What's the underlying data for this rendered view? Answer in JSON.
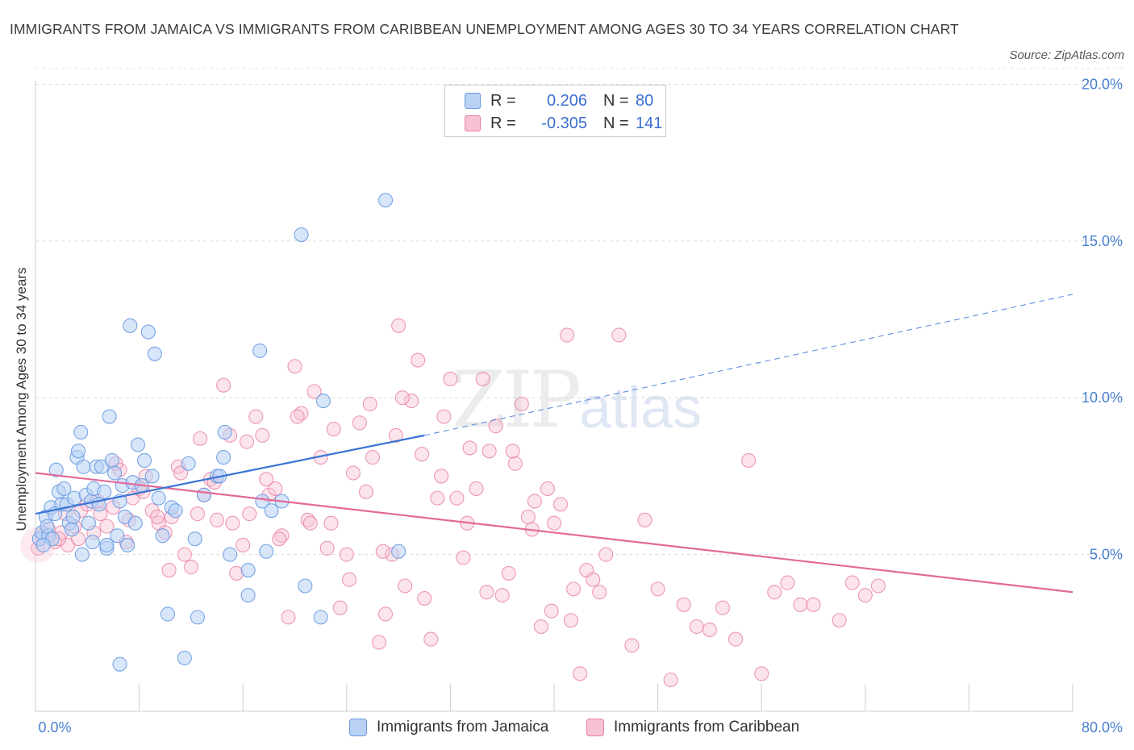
{
  "title": "IMMIGRANTS FROM JAMAICA VS IMMIGRANTS FROM CARIBBEAN UNEMPLOYMENT AMONG AGES 30 TO 34 YEARS CORRELATION CHART",
  "source": "Source: ZipAtlas.com",
  "watermark": {
    "zip": "ZIP",
    "atlas": "atlas"
  },
  "legend": {
    "rows": [
      {
        "r_label": "R =",
        "r_value": "0.206",
        "n_label": "N =",
        "n_value": "80",
        "color": "#6a9be0",
        "fill": "#b8d1f5"
      },
      {
        "r_label": "R =",
        "r_value": "-0.305",
        "n_label": "N =",
        "n_value": "141",
        "color": "#e87fa3",
        "fill": "#f7c3d4"
      }
    ]
  },
  "bottom_legend": [
    "Immigrants from Jamaica",
    "Immigrants from Caribbean"
  ],
  "chart_data": {
    "type": "scatter",
    "title": "IMMIGRANTS FROM JAMAICA VS IMMIGRANTS FROM CARIBBEAN UNEMPLOYMENT AMONG AGES 30 TO 34 YEARS CORRELATION CHART",
    "xlabel": "",
    "ylabel": "Unemployment Among Ages 30 to 34 years",
    "xlim": [
      0,
      80
    ],
    "ylim": [
      0,
      20.5
    ],
    "x_tick_labels": [
      "0.0%",
      "80.0%"
    ],
    "y_ticks": [
      5,
      10,
      15,
      20
    ],
    "y_tick_labels": [
      "5.0%",
      "10.0%",
      "15.0%",
      "20.0%"
    ],
    "grid": "horizontal dashed",
    "legend_position": "top-center",
    "series": [
      {
        "name": "Immigrants from Jamaica",
        "color": "#6a9be0",
        "fill": "#b8d1f5",
        "trend": {
          "x": [
            0,
            30
          ],
          "y": [
            6.3,
            8.8
          ],
          "extended_to": [
            80,
            13.3
          ]
        },
        "points": [
          [
            0.3,
            5.5
          ],
          [
            0.5,
            5.7
          ],
          [
            0.8,
            6.2
          ],
          [
            1.0,
            5.6
          ],
          [
            1.2,
            6.5
          ],
          [
            1.5,
            6.3
          ],
          [
            1.6,
            7.7
          ],
          [
            1.8,
            7.0
          ],
          [
            2.0,
            6.6
          ],
          [
            2.2,
            7.1
          ],
          [
            2.4,
            6.6
          ],
          [
            2.6,
            6.0
          ],
          [
            2.8,
            5.8
          ],
          [
            3.0,
            6.8
          ],
          [
            3.2,
            8.1
          ],
          [
            3.3,
            8.3
          ],
          [
            3.5,
            8.9
          ],
          [
            3.7,
            7.8
          ],
          [
            3.9,
            6.9
          ],
          [
            4.1,
            6.0
          ],
          [
            4.3,
            6.7
          ],
          [
            4.5,
            7.1
          ],
          [
            4.7,
            7.8
          ],
          [
            4.9,
            6.6
          ],
          [
            5.1,
            7.8
          ],
          [
            5.3,
            7.0
          ],
          [
            5.5,
            5.2
          ],
          [
            5.7,
            9.4
          ],
          [
            5.9,
            8.0
          ],
          [
            6.1,
            7.6
          ],
          [
            6.3,
            5.6
          ],
          [
            6.5,
            6.7
          ],
          [
            6.7,
            7.2
          ],
          [
            6.9,
            6.2
          ],
          [
            7.1,
            5.3
          ],
          [
            7.3,
            12.3
          ],
          [
            7.5,
            7.3
          ],
          [
            7.7,
            6.0
          ],
          [
            7.9,
            8.5
          ],
          [
            8.2,
            7.2
          ],
          [
            8.4,
            8.0
          ],
          [
            8.7,
            12.1
          ],
          [
            9.0,
            7.5
          ],
          [
            9.2,
            11.4
          ],
          [
            9.5,
            6.8
          ],
          [
            9.8,
            5.6
          ],
          [
            10.2,
            3.1
          ],
          [
            10.5,
            6.5
          ],
          [
            10.8,
            6.4
          ],
          [
            11.5,
            1.7
          ],
          [
            11.8,
            7.9
          ],
          [
            12.3,
            5.5
          ],
          [
            12.5,
            3.0
          ],
          [
            13.0,
            6.9
          ],
          [
            14.0,
            7.5
          ],
          [
            14.2,
            7.5
          ],
          [
            14.5,
            8.1
          ],
          [
            14.6,
            8.9
          ],
          [
            15.0,
            5.0
          ],
          [
            16.4,
            3.7
          ],
          [
            16.4,
            4.5
          ],
          [
            17.3,
            11.5
          ],
          [
            17.5,
            6.7
          ],
          [
            17.8,
            5.1
          ],
          [
            18.2,
            6.4
          ],
          [
            19.0,
            6.7
          ],
          [
            20.5,
            15.2
          ],
          [
            20.8,
            4.0
          ],
          [
            22.0,
            3.0
          ],
          [
            22.2,
            9.9
          ],
          [
            5.5,
            5.3
          ],
          [
            6.5,
            1.5
          ],
          [
            1.3,
            5.5
          ],
          [
            0.9,
            5.9
          ],
          [
            2.9,
            6.2
          ],
          [
            3.6,
            5.0
          ],
          [
            4.4,
            5.4
          ],
          [
            0.6,
            5.3
          ],
          [
            27.0,
            16.3
          ],
          [
            28.0,
            5.1
          ]
        ]
      },
      {
        "name": "Immigrants from Caribbean",
        "color": "#e87fa3",
        "fill": "#f7c3d4",
        "trend": {
          "x": [
            0,
            80
          ],
          "y": [
            7.6,
            3.8
          ]
        },
        "points": [
          [
            0.2,
            5.2
          ],
          [
            0.5,
            5.6
          ],
          [
            1.0,
            5.8
          ],
          [
            1.5,
            5.4
          ],
          [
            2.0,
            5.7
          ],
          [
            2.5,
            5.3
          ],
          [
            3.0,
            5.9
          ],
          [
            3.5,
            6.4
          ],
          [
            4.0,
            6.6
          ],
          [
            4.5,
            5.7
          ],
          [
            5.0,
            6.3
          ],
          [
            5.5,
            5.9
          ],
          [
            6.0,
            6.5
          ],
          [
            6.5,
            7.7
          ],
          [
            7.0,
            5.4
          ],
          [
            7.5,
            6.8
          ],
          [
            8.0,
            7.1
          ],
          [
            8.5,
            7.5
          ],
          [
            9.0,
            6.4
          ],
          [
            9.5,
            6.0
          ],
          [
            10.0,
            5.7
          ],
          [
            10.5,
            6.2
          ],
          [
            11.0,
            7.8
          ],
          [
            11.5,
            5.0
          ],
          [
            12.0,
            4.6
          ],
          [
            12.5,
            6.3
          ],
          [
            13.0,
            6.9
          ],
          [
            13.5,
            7.4
          ],
          [
            14.0,
            6.1
          ],
          [
            14.5,
            10.4
          ],
          [
            15.0,
            8.8
          ],
          [
            15.5,
            4.4
          ],
          [
            16.0,
            5.3
          ],
          [
            16.5,
            6.3
          ],
          [
            17.0,
            9.4
          ],
          [
            17.5,
            8.8
          ],
          [
            18.0,
            6.9
          ],
          [
            18.5,
            7.1
          ],
          [
            19.0,
            5.6
          ],
          [
            19.5,
            3.0
          ],
          [
            20.0,
            11.0
          ],
          [
            20.5,
            9.5
          ],
          [
            21.0,
            6.1
          ],
          [
            21.5,
            10.2
          ],
          [
            22.0,
            8.1
          ],
          [
            22.5,
            5.2
          ],
          [
            23.0,
            9.0
          ],
          [
            23.5,
            3.3
          ],
          [
            24.0,
            5.0
          ],
          [
            24.5,
            7.6
          ],
          [
            25.0,
            9.2
          ],
          [
            25.5,
            7.0
          ],
          [
            26.0,
            8.1
          ],
          [
            26.5,
            2.2
          ],
          [
            27.0,
            3.1
          ],
          [
            27.5,
            5.0
          ],
          [
            28.0,
            12.3
          ],
          [
            28.5,
            4.0
          ],
          [
            29.0,
            9.9
          ],
          [
            29.5,
            11.2
          ],
          [
            30.0,
            3.6
          ],
          [
            30.5,
            2.3
          ],
          [
            31.0,
            6.8
          ],
          [
            31.5,
            9.4
          ],
          [
            32.0,
            10.6
          ],
          [
            32.5,
            6.8
          ],
          [
            33.0,
            4.9
          ],
          [
            33.5,
            8.4
          ],
          [
            34.0,
            7.1
          ],
          [
            34.5,
            10.6
          ],
          [
            35.0,
            8.3
          ],
          [
            35.5,
            9.1
          ],
          [
            36.0,
            3.7
          ],
          [
            36.5,
            4.4
          ],
          [
            37.0,
            7.9
          ],
          [
            37.5,
            9.8
          ],
          [
            38.0,
            6.2
          ],
          [
            38.5,
            6.7
          ],
          [
            39.0,
            2.7
          ],
          [
            39.5,
            7.1
          ],
          [
            40.0,
            6.0
          ],
          [
            40.5,
            6.6
          ],
          [
            41.0,
            12.0
          ],
          [
            41.5,
            3.9
          ],
          [
            42.0,
            1.2
          ],
          [
            42.5,
            4.5
          ],
          [
            43.0,
            4.2
          ],
          [
            43.5,
            3.8
          ],
          [
            44.0,
            5.0
          ],
          [
            45.0,
            12.0
          ],
          [
            46.0,
            2.1
          ],
          [
            47.0,
            6.1
          ],
          [
            48.0,
            3.9
          ],
          [
            49.0,
            1.0
          ],
          [
            50.0,
            3.4
          ],
          [
            51.0,
            2.7
          ],
          [
            52.0,
            2.6
          ],
          [
            53.0,
            3.3
          ],
          [
            54.0,
            2.3
          ],
          [
            55.0,
            8.0
          ],
          [
            56.0,
            1.2
          ],
          [
            57.0,
            3.8
          ],
          [
            58.0,
            4.1
          ],
          [
            59.0,
            3.4
          ],
          [
            60.0,
            3.4
          ],
          [
            62.0,
            2.9
          ],
          [
            63.0,
            4.1
          ],
          [
            64.0,
            3.7
          ],
          [
            65.0,
            4.0
          ],
          [
            4.8,
            6.7
          ],
          [
            1.8,
            5.5
          ],
          [
            2.3,
            6.3
          ],
          [
            3.3,
            5.5
          ],
          [
            6.2,
            7.9
          ],
          [
            7.2,
            6.1
          ],
          [
            8.3,
            7.0
          ],
          [
            9.4,
            6.2
          ],
          [
            10.3,
            4.5
          ],
          [
            11.2,
            7.6
          ],
          [
            12.7,
            8.7
          ],
          [
            13.8,
            7.3
          ],
          [
            15.2,
            6.0
          ],
          [
            16.3,
            8.6
          ],
          [
            17.8,
            7.4
          ],
          [
            18.8,
            5.5
          ],
          [
            20.2,
            9.4
          ],
          [
            21.2,
            6.0
          ],
          [
            22.8,
            6.0
          ],
          [
            24.2,
            4.2
          ],
          [
            25.8,
            9.8
          ],
          [
            26.8,
            5.1
          ],
          [
            28.3,
            10.0
          ],
          [
            29.8,
            8.2
          ],
          [
            31.3,
            7.5
          ],
          [
            33.3,
            6.0
          ],
          [
            34.8,
            3.8
          ],
          [
            36.8,
            8.3
          ],
          [
            38.3,
            5.8
          ],
          [
            39.8,
            3.2
          ],
          [
            41.3,
            2.9
          ],
          [
            27.8,
            8.8
          ]
        ]
      }
    ]
  }
}
